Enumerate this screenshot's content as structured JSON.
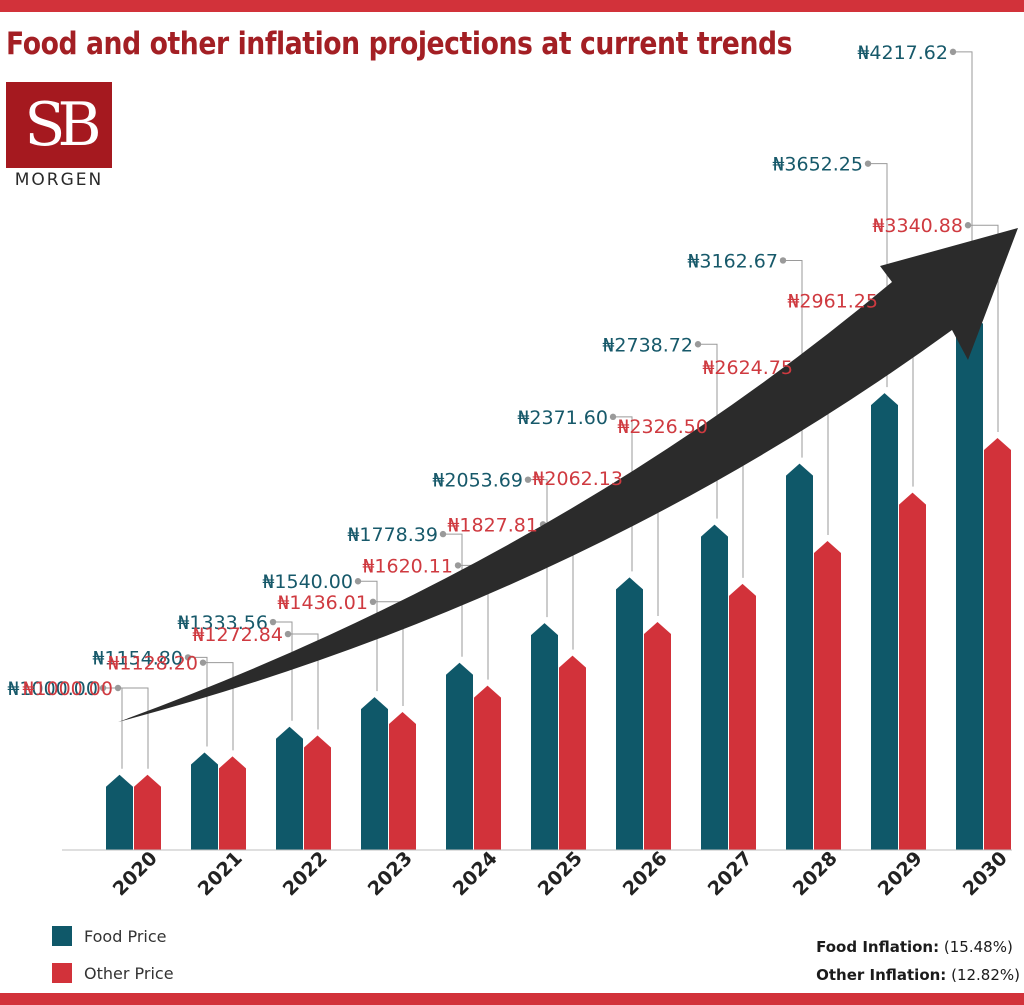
{
  "header": {
    "title": "Food and other inflation projections at current trends"
  },
  "logo": {
    "mark": "SB",
    "word": "MORGEN"
  },
  "colors": {
    "food": "#0f5869",
    "other": "#d2323a",
    "accent_band": "#d2323a",
    "title": "#a31f24",
    "arrow": "#2b2b2b"
  },
  "legend": {
    "food_label": "Food Price",
    "other_label": "Other Price"
  },
  "inflation": {
    "food_name": "Food Inflation:",
    "food_value": "(15.48%)",
    "other_name": "Other Inflation:",
    "other_value": "(12.82%)"
  },
  "chart_data": {
    "type": "bar",
    "title": "Food and other inflation projections at current trends",
    "categories": [
      "2020",
      "2021",
      "2022",
      "2023",
      "2024",
      "2025",
      "2026",
      "2027",
      "2028",
      "2029",
      "2030"
    ],
    "series": [
      {
        "name": "Food Price",
        "values": [
          1000.0,
          1154.8,
          1333.56,
          1540.0,
          1778.39,
          2053.69,
          2371.6,
          2738.72,
          3162.67,
          3652.25,
          4217.62
        ],
        "labels": [
          "₦1000.00",
          "₦1154.80",
          "₦1333.56",
          "₦1540.00",
          "₦1778.39",
          "₦2053.69",
          "₦2371.60",
          "₦2738.72",
          "₦3162.67",
          "₦3652.25",
          "₦4217.62"
        ]
      },
      {
        "name": "Other Price",
        "values": [
          1000.0,
          1128.2,
          1272.84,
          1436.01,
          1620.11,
          1827.81,
          2062.13,
          2326.5,
          2624.75,
          2961.25,
          3340.88
        ],
        "labels": [
          "₦1000.00",
          "₦1128.20",
          "₦1272.84",
          "₦1436.01",
          "₦1620.11",
          "₦1827.81",
          "₦2062.13",
          "₦2326.50",
          "₦2624.75",
          "₦2961.25",
          "₦3340.88"
        ]
      }
    ],
    "xlabel": "",
    "ylabel": "",
    "legend_position": "bottom-left",
    "grid": false
  }
}
